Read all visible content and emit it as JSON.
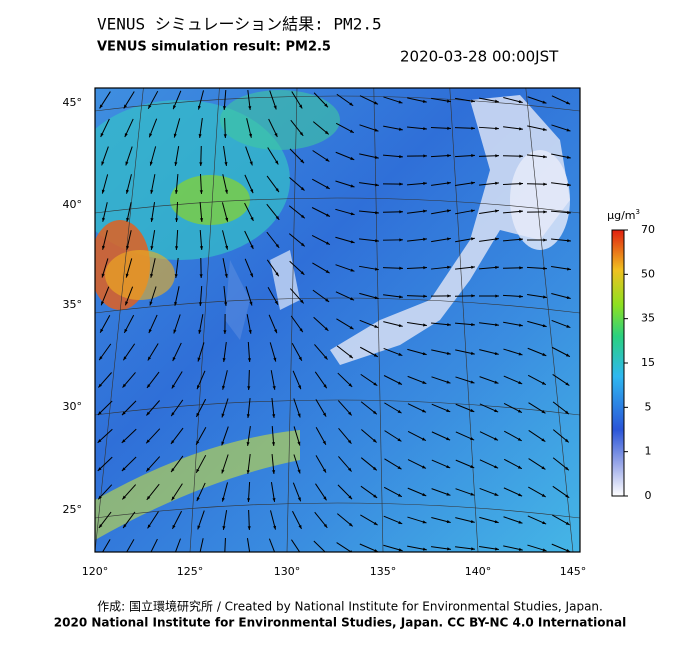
{
  "header": {
    "title_ja": "VENUS シミュレーション結果: PM2.5",
    "title_en": "VENUS simulation result: PM2.5",
    "timestamp": "2020-03-28 00:00JST"
  },
  "map": {
    "lat_labels": [
      "45°",
      "40°",
      "35°",
      "30°",
      "25°"
    ],
    "lon_labels": [
      "120°",
      "125°",
      "130°",
      "135°",
      "140°",
      "145°"
    ]
  },
  "colorbar": {
    "unit": "µg/m",
    "unit_sup": "3",
    "ticks": [
      "70",
      "50",
      "35",
      "15",
      "5",
      "1",
      "0"
    ]
  },
  "footer": {
    "credit": "作成: 国立環境研究所 / Created by National Institute for Environmental Studies, Japan.",
    "license": "2020 National Institute for Environmental Studies, Japan. CC BY-NC 4.0 International"
  }
}
